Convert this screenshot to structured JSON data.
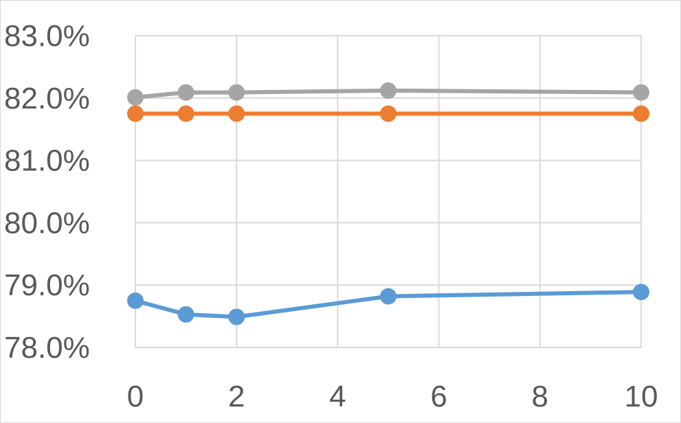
{
  "chart_data": {
    "type": "line",
    "title": "",
    "xlabel": "",
    "ylabel": "",
    "x": [
      0,
      1,
      2,
      5,
      10
    ],
    "xlim": [
      0,
      10
    ],
    "x_ticks": [
      0,
      2,
      4,
      6,
      8,
      10
    ],
    "x_tick_labels": [
      "0",
      "2",
      "4",
      "6",
      "8",
      "10"
    ],
    "ylim": [
      0.78,
      0.83
    ],
    "y_ticks": [
      0.78,
      0.79,
      0.8,
      0.81,
      0.82,
      0.83
    ],
    "y_tick_labels": [
      "78.0%",
      "79.0%",
      "80.0%",
      "81.0%",
      "82.0%",
      "83.0%"
    ],
    "grid": true,
    "legend": "none",
    "series": [
      {
        "color": "#A5A5A5",
        "values": [
          0.8201,
          0.8209,
          0.8209,
          0.8212,
          0.8209
        ]
      },
      {
        "color": "#ED7D31",
        "values": [
          0.8175,
          0.8175,
          0.8175,
          0.8175,
          0.8175
        ]
      },
      {
        "color": "#5B9BD5",
        "values": [
          0.7875,
          0.7853,
          0.7849,
          0.7882,
          0.7889
        ]
      }
    ]
  }
}
